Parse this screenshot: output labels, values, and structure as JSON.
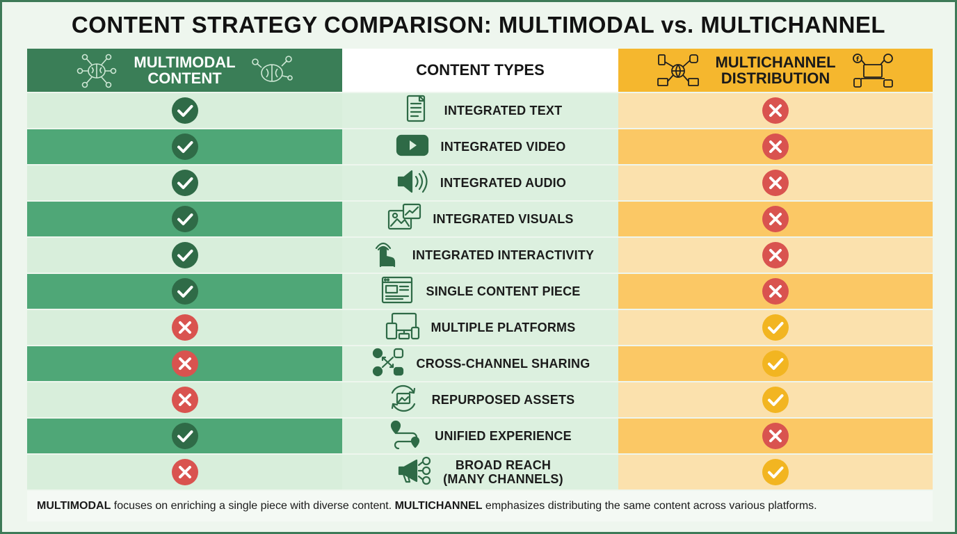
{
  "title": "CONTENT STRATEGY COMPARISON: MULTIMODAL vs. MULTICHANNEL",
  "header": {
    "left_line1": "MULTIMODAL",
    "left_line2": "CONTENT",
    "middle": "CONTENT TYPES",
    "right_line1": "MULTICHANNEL",
    "right_line2": "DISTRIBUTION"
  },
  "colors": {
    "check": "#2f6b47",
    "cross": "#d9534f",
    "check_alt": "#f2b521",
    "icon": "#2e6a46"
  },
  "rows": [
    {
      "label": "INTEGRATED TEXT",
      "icon": "document-icon",
      "multimodal": "check",
      "multichannel": "cross"
    },
    {
      "label": "INTEGRATED VIDEO",
      "icon": "video-play-icon",
      "multimodal": "check",
      "multichannel": "cross"
    },
    {
      "label": "INTEGRATED AUDIO",
      "icon": "speaker-icon",
      "multimodal": "check",
      "multichannel": "cross"
    },
    {
      "label": "INTEGRATED VISUALS",
      "icon": "image-chart-icon",
      "multimodal": "check",
      "multichannel": "cross"
    },
    {
      "label": "INTEGRATED INTERACTIVITY",
      "icon": "tap-hand-icon",
      "multimodal": "check",
      "multichannel": "cross"
    },
    {
      "label": "SINGLE CONTENT PIECE",
      "icon": "webpage-icon",
      "multimodal": "check",
      "multichannel": "cross"
    },
    {
      "label": "MULTIPLE PLATFORMS",
      "icon": "devices-icon",
      "multimodal": "cross",
      "multichannel": "check"
    },
    {
      "label": "CROSS-CHANNEL SHARING",
      "icon": "social-share-icon",
      "multimodal": "cross",
      "multichannel": "check"
    },
    {
      "label": "REPURPOSED ASSETS",
      "icon": "recycle-image-icon",
      "multimodal": "cross",
      "multichannel": "check"
    },
    {
      "label": "UNIFIED EXPERIENCE",
      "icon": "route-pin-icon",
      "multimodal": "check",
      "multichannel": "cross"
    },
    {
      "label": "BROAD REACH",
      "label2": "(MANY CHANNELS)",
      "icon": "megaphone-audience-icon",
      "multimodal": "cross",
      "multichannel": "check"
    }
  ],
  "footer": {
    "term1": "MULTIMODAL",
    "text1": " focuses on enriching a single piece with diverse content. ",
    "term2": "MULTICHANNEL",
    "text2": " emphasizes distributing the same content across various platforms."
  }
}
